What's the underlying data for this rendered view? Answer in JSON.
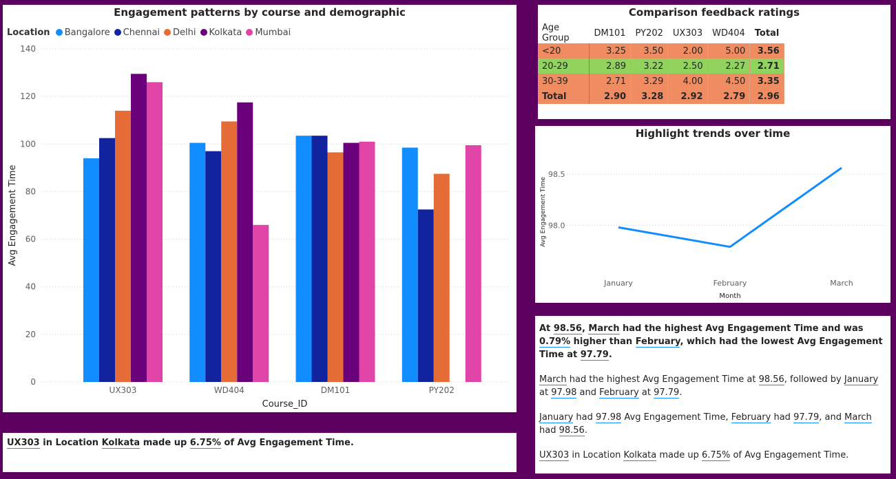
{
  "chart_data": [
    {
      "type": "bar",
      "title": "Engagement patterns by course and demographic",
      "xlabel": "Course_ID",
      "ylabel": "Avg Engagement Time",
      "legend_title": "Location",
      "legend_position": "top-left",
      "ylim": [
        0,
        140
      ],
      "yticks": [
        0,
        20,
        40,
        60,
        80,
        100,
        120,
        140
      ],
      "grid": true,
      "categories": [
        "UX303",
        "WD404",
        "DM101",
        "PY202"
      ],
      "series": [
        {
          "name": "Bangalore",
          "color": "#118dff",
          "values": [
            94,
            100.5,
            103.5,
            98.5
          ]
        },
        {
          "name": "Chennai",
          "color": "#12239e",
          "values": [
            102.5,
            97,
            103.5,
            72.5
          ]
        },
        {
          "name": "Delhi",
          "color": "#e66c37",
          "values": [
            114,
            109.5,
            96.5,
            87.5
          ]
        },
        {
          "name": "Kolkata",
          "color": "#6b007b",
          "values": [
            129.5,
            117.5,
            100.5,
            null
          ]
        },
        {
          "name": "Mumbai",
          "color": "#e044a7",
          "values": [
            126,
            66,
            101,
            99.5
          ]
        }
      ]
    },
    {
      "type": "table",
      "title": "Comparison feedback ratings",
      "columns": [
        "Age Group",
        "DM101",
        "PY202",
        "UX303",
        "WD404",
        "Total"
      ],
      "rows": [
        {
          "label": "<20",
          "values": [
            "3.25",
            "3.50",
            "2.00",
            "5.00",
            "3.56"
          ],
          "color": "#ef8c61"
        },
        {
          "label": "20-29",
          "values": [
            "2.89",
            "3.22",
            "2.50",
            "2.27",
            "2.71"
          ],
          "color": "#90d35f"
        },
        {
          "label": "30-39",
          "values": [
            "2.71",
            "3.29",
            "4.00",
            "4.50",
            "3.35"
          ],
          "color": "#ef8c61"
        },
        {
          "label": "Total",
          "values": [
            "2.90",
            "3.28",
            "2.92",
            "2.79",
            "2.96"
          ],
          "color": "#ef8c61"
        }
      ]
    },
    {
      "type": "line",
      "title": "Highlight trends over time",
      "xlabel": "Month",
      "ylabel": "Avg Engagement Time",
      "x": [
        "January",
        "February",
        "March"
      ],
      "series": [
        {
          "color": "#118dff",
          "values": [
            97.98,
            97.79,
            98.56
          ]
        }
      ],
      "ylim": [
        97.6,
        98.7
      ],
      "yticks": [
        "98.0",
        "98.5"
      ],
      "grid": true
    }
  ],
  "narrative_right": {
    "p1": {
      "s1": "At ",
      "v1": "98.56",
      "s2": ", ",
      "v2": "March",
      "s3": " had the highest Avg Engagement Time and was ",
      "v3": "0.79%",
      "s4": " higher than ",
      "v4": "February",
      "s5": ", which had the lowest Avg Engagement Time at ",
      "v5": "97.79",
      "s6": "."
    },
    "p2": {
      "v1": "March",
      "s1": " had the highest Avg Engagement Time at ",
      "v2": "98.56",
      "s2": ", followed by ",
      "v3": "January",
      "s3": " at ",
      "v4": "97.98",
      "s4": " and ",
      "v5": "February",
      "s5": " at ",
      "v6": "97.79",
      "s6": "."
    },
    "p3": {
      "v1": "January",
      "s1": " had ",
      "v2": "97.98",
      "s2": " Avg Engagement Time, ",
      "v3": "February",
      "s3": " had ",
      "v4": "97.79",
      "s4": ", and ",
      "v5": "March",
      "s5": " had ",
      "v6": "98.56",
      "s6": "."
    },
    "p4": {
      "v1": "UX303",
      "s1": " in Location ",
      "v2": "Kolkata",
      "s2": " made up ",
      "v3": "6.75%",
      "s3": " of Avg Engagement Time."
    }
  },
  "narrative_bottom": {
    "v1": "UX303",
    "s1": " in Location ",
    "v2": "Kolkata",
    "s2": " made up ",
    "v3": "6.75%",
    "s3": " of Avg Engagement Time."
  }
}
